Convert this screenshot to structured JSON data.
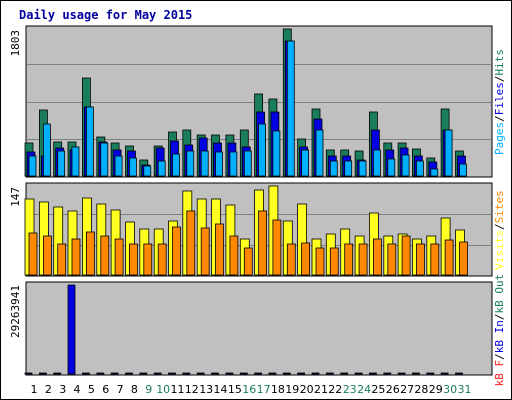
{
  "colors": {
    "panel_bg": "#c0c0c0",
    "grid": "#808080",
    "pages": "#1a7d5c",
    "files": "#0000e0",
    "hits": "#00b0ff",
    "visits": "#ffff20",
    "sites": "#ff8800",
    "kb_in": "#0000e0",
    "kb_out": "#1a7d5c",
    "kb_f": "#ff2020",
    "weekend": "#1a7d5c",
    "weekday": "#000000"
  },
  "chart_data": {
    "type": "bar",
    "title": "Daily usage for May 2015",
    "categories": [
      "1",
      "2",
      "3",
      "4",
      "5",
      "6",
      "7",
      "8",
      "9",
      "10",
      "11",
      "12",
      "13",
      "14",
      "15",
      "16",
      "17",
      "18",
      "19",
      "20",
      "21",
      "22",
      "23",
      "24",
      "25",
      "26",
      "27",
      "28",
      "29",
      "30",
      "31"
    ],
    "weekend_days": [
      "9",
      "10",
      "16",
      "17",
      "23",
      "24",
      "30",
      "31"
    ],
    "panels": [
      {
        "name": "hits",
        "ymax_label": "1803",
        "ylim": [
          0,
          1803
        ],
        "legend": [
          {
            "text": "Pages",
            "color": "#00b0ff"
          },
          {
            "text": "/",
            "color": "#000000"
          },
          {
            "text": "Files",
            "color": "#0000e0"
          },
          {
            "text": "/",
            "color": "#000000"
          },
          {
            "text": "Hits",
            "color": "#1a7d5c"
          }
        ],
        "series": [
          {
            "name": "Hits",
            "color": "#1a7d5c",
            "values": [
              410,
              810,
              420,
              420,
              1200,
              480,
              410,
              370,
              200,
              370,
              540,
              570,
              500,
              500,
              500,
              570,
              1000,
              950,
              1803,
              450,
              820,
              320,
              320,
              310,
              780,
              410,
              410,
              330,
              220,
              820,
              310
            ]
          },
          {
            "name": "Files",
            "color": "#0000e0",
            "values": [
              290,
              250,
              340,
              320,
              850,
              420,
              320,
              310,
              140,
              340,
              430,
              380,
              460,
              410,
              400,
              350,
              780,
              780,
              1660,
              350,
              700,
              250,
              250,
              200,
              560,
              320,
              340,
              250,
              170,
              570,
              250
            ]
          },
          {
            "name": "Pages",
            "color": "#00b0ff",
            "values": [
              250,
              640,
              310,
              350,
              850,
              410,
              250,
              220,
              120,
              180,
              270,
              310,
              310,
              290,
              290,
              310,
              640,
              550,
              1660,
              320,
              560,
              180,
              180,
              180,
              320,
              210,
              260,
              190,
              80,
              560,
              150
            ]
          }
        ]
      },
      {
        "name": "visits",
        "ymax_label": "147",
        "ylim": [
          0,
          147
        ],
        "legend": [
          {
            "text": "Visits",
            "color": "#ffff20"
          },
          {
            "text": "/",
            "color": "#000000"
          },
          {
            "text": "Sites",
            "color": "#ff8800"
          }
        ],
        "series": [
          {
            "name": "Visits",
            "color": "#ffff20",
            "values": [
              125,
              120,
              113,
              105,
              128,
              118,
              107,
              88,
              76,
              76,
              90,
              138,
              126,
              125,
              115,
              59,
              140,
              147,
              89,
              117,
              60,
              68,
              76,
              65,
              103,
              65,
              68,
              60,
              65,
              94,
              75
            ]
          },
          {
            "name": "Sites",
            "color": "#ff8800",
            "values": [
              69,
              65,
              52,
              59,
              71,
              65,
              59,
              52,
              52,
              52,
              80,
              105,
              78,
              84,
              65,
              45,
              106,
              91,
              52,
              53,
              45,
              45,
              52,
              52,
              60,
              52,
              65,
              52,
              52,
              58,
              55
            ]
          }
        ]
      },
      {
        "name": "kbytes",
        "ymax_label": "29263941",
        "ylim": [
          0,
          29263941
        ],
        "legend": [
          {
            "text": "kB F",
            "color": "#ff2020"
          },
          {
            "text": "/",
            "color": "#000000"
          },
          {
            "text": "kB In",
            "color": "#0000e0"
          },
          {
            "text": "/",
            "color": "#000000"
          },
          {
            "text": "kB Out",
            "color": "#1a7d5c"
          }
        ],
        "series": [
          {
            "name": "kB In",
            "color": "#0000e0",
            "values": [
              100000,
              100000,
              100000,
              29263941,
              100000,
              100000,
              100000,
              100000,
              100000,
              100000,
              100000,
              100000,
              100000,
              100000,
              100000,
              100000,
              100000,
              100000,
              100000,
              100000,
              100000,
              100000,
              100000,
              100000,
              100000,
              100000,
              100000,
              100000,
              100000,
              100000,
              100000
            ]
          }
        ]
      }
    ]
  }
}
